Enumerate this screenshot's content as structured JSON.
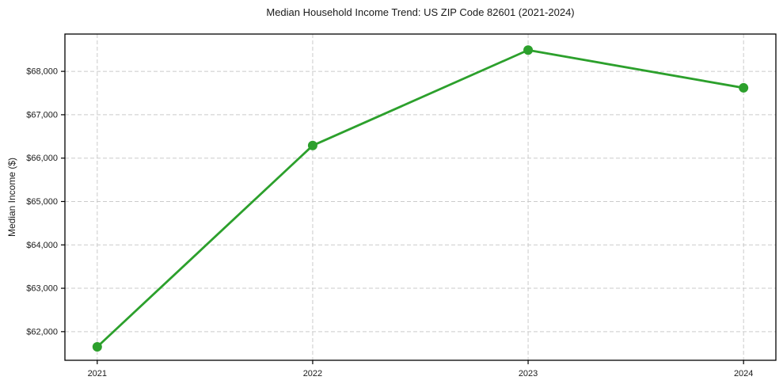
{
  "chart_data": {
    "type": "line",
    "title": "Median Household Income Trend: US ZIP Code 82601 (2021-2024)",
    "xlabel": "",
    "ylabel": "Median Income ($)",
    "categories": [
      "2021",
      "2022",
      "2023",
      "2024"
    ],
    "x": [
      2021,
      2022,
      2023,
      2024
    ],
    "series": [
      {
        "name": "Median household income",
        "values": [
          61650,
          66290,
          68490,
          67620
        ],
        "color": "#2ca02c",
        "marker": "circle",
        "marker_radius": 6
      }
    ],
    "xlim": [
      2020.85,
      2024.15
    ],
    "ylim": [
      61340,
      68860
    ],
    "y_ticks": [
      62000,
      63000,
      64000,
      65000,
      66000,
      67000,
      68000
    ],
    "y_tick_labels": [
      "$62,000",
      "$63,000",
      "$64,000",
      "$65,000",
      "$66,000",
      "$67,000",
      "$68,000"
    ],
    "x_tick_labels": [
      "2021",
      "2022",
      "2023",
      "2024"
    ],
    "grid": {
      "visible": true,
      "style": "dashed",
      "color": "#cbcbcb",
      "orientation": "both"
    },
    "legend": {
      "visible": false
    },
    "background": "#ffffff",
    "axis_color": "#000000",
    "text_color": "#1a1a1a"
  }
}
